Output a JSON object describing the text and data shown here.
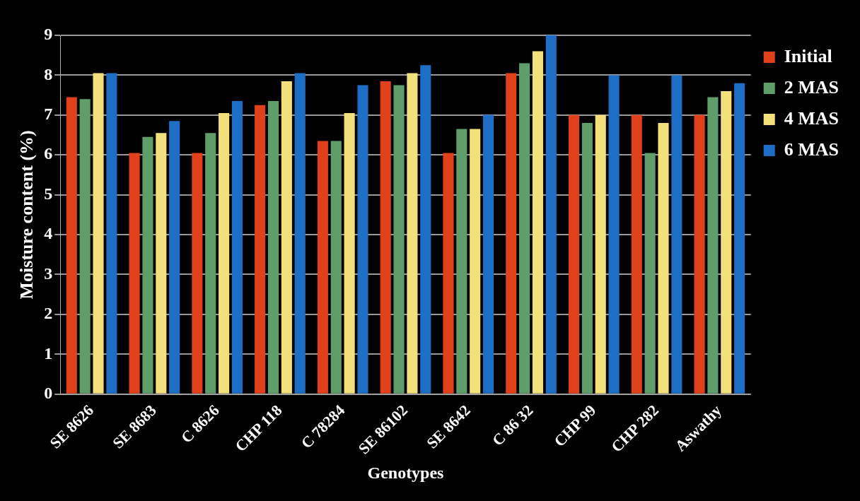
{
  "chart_data": {
    "type": "bar",
    "xlabel": "Genotypes",
    "ylabel": "Moisture content (%)",
    "categories": [
      "SE 8626",
      "SE 8683",
      "C 8626",
      "CHP 118",
      "C 78284",
      "SE 86102",
      "SE 8642",
      "C 86 32",
      "CHP 99",
      "CHP 282",
      "Aswathy"
    ],
    "series": [
      {
        "name": "Initial",
        "color": "#e0401a",
        "values": [
          7.45,
          6.05,
          6.05,
          7.25,
          6.35,
          7.85,
          6.05,
          8.05,
          7.0,
          7.0,
          7.0
        ]
      },
      {
        "name": "2 MAS",
        "color": "#5f9e6a",
        "values": [
          7.4,
          6.45,
          6.55,
          7.35,
          6.35,
          7.75,
          6.65,
          8.3,
          6.8,
          6.05,
          7.45
        ]
      },
      {
        "name": "4 MAS",
        "color": "#f2e07a",
        "values": [
          8.05,
          6.55,
          7.05,
          7.85,
          7.05,
          8.05,
          6.65,
          8.6,
          7.0,
          6.8,
          7.6
        ]
      },
      {
        "name": "6 MAS",
        "color": "#1c6fc4",
        "values": [
          8.05,
          6.85,
          7.35,
          8.05,
          7.75,
          8.25,
          7.0,
          9.0,
          8.0,
          8.0,
          7.8
        ]
      }
    ],
    "ylim": [
      0,
      9
    ],
    "yticks": [
      0,
      1,
      2,
      3,
      4,
      5,
      6,
      7,
      8,
      9
    ],
    "grid": "y",
    "legend": "right"
  }
}
